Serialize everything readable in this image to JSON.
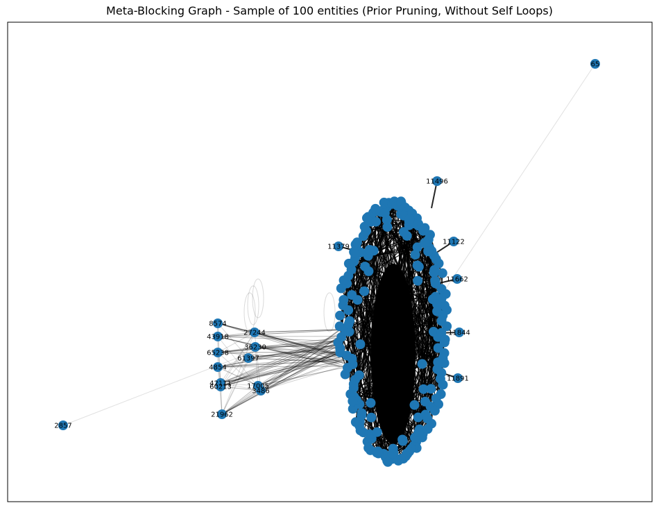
{
  "title": "Meta-Blocking Graph - Sample of 100 entities (Prior Pruning, Without Self Loops)",
  "colors": {
    "node": "#1f77b4",
    "edge": "#000000",
    "frame": "#000000",
    "background": "#ffffff"
  },
  "labeled_nodes": [
    {
      "id": "n65",
      "label": "65"
    },
    {
      "id": "n2857",
      "label": "2857"
    },
    {
      "id": "n11496",
      "label": "11496"
    },
    {
      "id": "n11122",
      "label": "11122"
    },
    {
      "id": "n11662",
      "label": "11662"
    },
    {
      "id": "n11844",
      "label": "11844"
    },
    {
      "id": "n11891",
      "label": "11891"
    },
    {
      "id": "n8574",
      "label": "8574"
    },
    {
      "id": "n43918",
      "label": "43918"
    },
    {
      "id": "n65238",
      "label": "65238"
    },
    {
      "id": "n4854",
      "label": "4854"
    },
    {
      "id": "n42111",
      "label": "42111"
    },
    {
      "id": "n60213",
      "label": "60213"
    },
    {
      "id": "n27244",
      "label": "27244"
    },
    {
      "id": "n36230",
      "label": "36230"
    },
    {
      "id": "n61397",
      "label": "61397"
    },
    {
      "id": "n17005",
      "label": "17005"
    },
    {
      "id": "n3486",
      "label": "3486"
    },
    {
      "id": "n21962",
      "label": "21962"
    },
    {
      "id": "n11379",
      "label": "11379"
    }
  ]
}
